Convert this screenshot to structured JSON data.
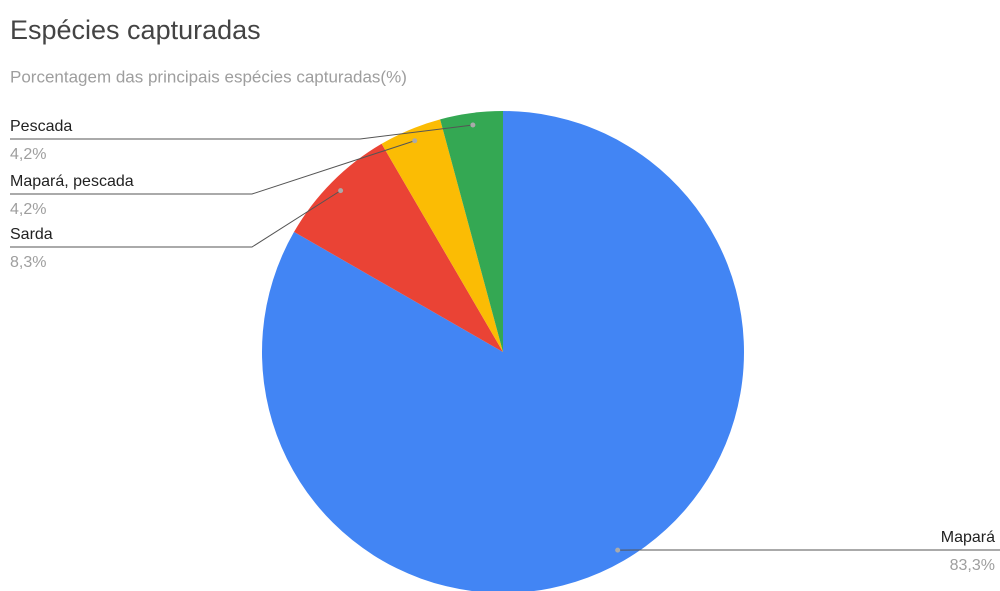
{
  "chart_data": {
    "type": "pie",
    "title": "Espécies capturadas",
    "subtitle": "Porcentagem das principais espécies capturadas(%)",
    "categories": [
      "Mapará",
      "Sarda",
      "Mapará, pescada",
      "Pescada"
    ],
    "values": [
      83.3,
      8.3,
      4.2,
      4.2
    ],
    "value_labels": [
      "83,3%",
      "8,3%",
      "4,2%",
      "4,2%"
    ],
    "colors": [
      "#4285f4",
      "#ea4335",
      "#fbbc04",
      "#34a853"
    ]
  }
}
